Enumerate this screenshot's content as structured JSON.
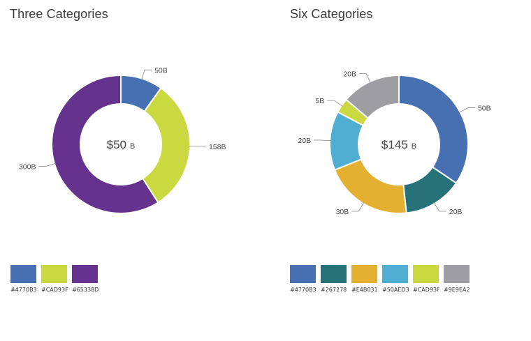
{
  "chart_data": [
    {
      "type": "donut",
      "title": "Three Categories",
      "center": {
        "value": "$50",
        "unit": "B"
      },
      "slices": [
        {
          "label": "50B",
          "value": 50,
          "color": "#4770B3"
        },
        {
          "label": "158B",
          "value": 158,
          "color": "#CAD93F"
        },
        {
          "label": "300B",
          "value": 300,
          "color": "#65338D"
        }
      ],
      "swatches": [
        {
          "color": "#4770B3",
          "hex": "#4770B3"
        },
        {
          "color": "#CAD93F",
          "hex": "#CAD93F"
        },
        {
          "color": "#65338D",
          "hex": "#65338D"
        }
      ]
    },
    {
      "type": "donut",
      "title": "Six Categories",
      "center": {
        "value": "$145",
        "unit": "B"
      },
      "slices": [
        {
          "label": "50B",
          "value": 50,
          "color": "#4770B3"
        },
        {
          "label": "20B",
          "value": 20,
          "color": "#267278"
        },
        {
          "label": "30B",
          "value": 30,
          "color": "#E4B031"
        },
        {
          "label": "20B",
          "value": 20,
          "color": "#50AED3"
        },
        {
          "label": "5B",
          "value": 5,
          "color": "#CAD93F"
        },
        {
          "label": "20B",
          "value": 20,
          "color": "#9E9EA2"
        }
      ],
      "swatches": [
        {
          "color": "#4770B3",
          "hex": "#4770B3"
        },
        {
          "color": "#267278",
          "hex": "#267278"
        },
        {
          "color": "#E4B031",
          "hex": "#E4B031"
        },
        {
          "color": "#50AED3",
          "hex": "#50AED3"
        },
        {
          "color": "#CAD93F",
          "hex": "#CAD93F"
        },
        {
          "color": "#9E9EA2",
          "hex": "#9E9EA2"
        }
      ]
    }
  ]
}
